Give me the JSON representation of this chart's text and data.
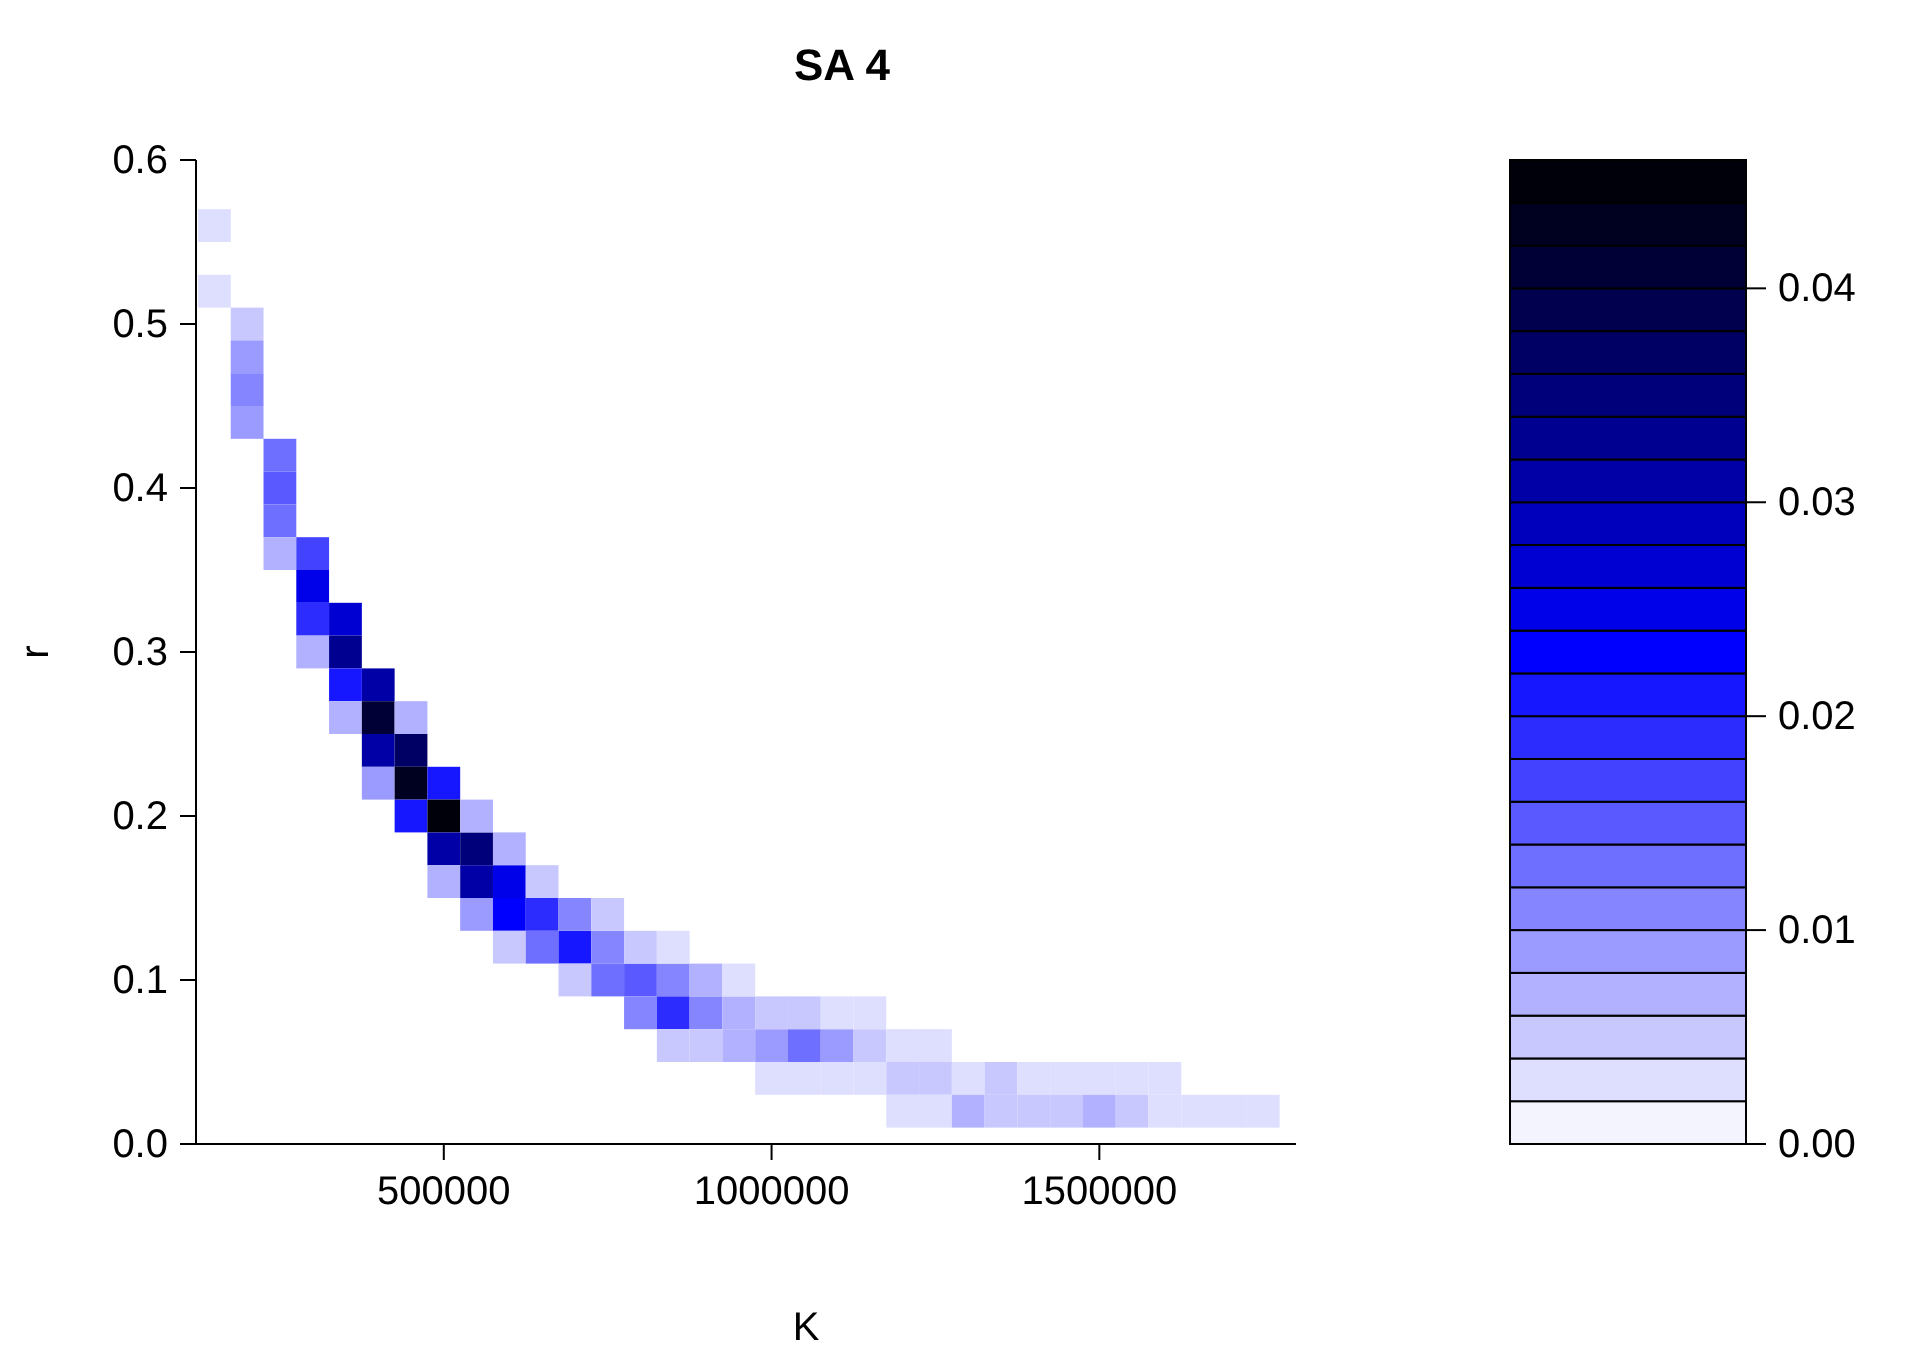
{
  "chart_data": {
    "type": "scatter",
    "title": "SA 4",
    "xlabel": "K",
    "ylabel": "r",
    "marker": "square",
    "xlim": [
      122000,
      1800000
    ],
    "xticks": [
      500000,
      1000000,
      1500000
    ],
    "ylim": [
      0,
      0.6
    ],
    "yticks": [
      {
        "value": 0,
        "label": "0.0"
      },
      0.1,
      0.2,
      0.3,
      0.4,
      0.5,
      0.6
    ],
    "clim": [
      0,
      0.046
    ],
    "cticks": [
      {
        "value": 0,
        "label": "0.00"
      },
      0.01,
      0.02,
      0.03,
      0.04
    ],
    "x": [
      150000,
      150000,
      200000,
      200000,
      200000,
      200000,
      250000,
      250000,
      250000,
      250000,
      300000,
      300000,
      300000,
      300000,
      350000,
      350000,
      350000,
      350000,
      400000,
      400000,
      400000,
      400000,
      450000,
      450000,
      450000,
      450000,
      500000,
      500000,
      500000,
      500000,
      550000,
      550000,
      550000,
      550000,
      600000,
      600000,
      600000,
      600000,
      650000,
      650000,
      650000,
      700000,
      700000,
      700000,
      750000,
      750000,
      750000,
      800000,
      800000,
      800000,
      850000,
      850000,
      850000,
      850000,
      900000,
      900000,
      900000,
      950000,
      950000,
      950000,
      1000000,
      1000000,
      1000000,
      1050000,
      1050000,
      1050000,
      1100000,
      1100000,
      1100000,
      1150000,
      1150000,
      1150000,
      1200000,
      1200000,
      1200000,
      1250000,
      1250000,
      1250000,
      1300000,
      1300000,
      1350000,
      1350000,
      1400000,
      1400000,
      1450000,
      1450000,
      1500000,
      1500000,
      1550000,
      1550000,
      1600000,
      1600000,
      1650000,
      1700000,
      1750000
    ],
    "values": [
      0.56,
      0.52,
      0.5,
      0.48,
      0.46,
      0.44,
      0.42,
      0.4,
      0.38,
      0.36,
      0.36,
      0.34,
      0.32,
      0.3,
      0.32,
      0.3,
      0.28,
      0.26,
      0.28,
      0.26,
      0.24,
      0.22,
      0.24,
      0.22,
      0.2,
      0.26,
      0.22,
      0.2,
      0.18,
      0.16,
      0.18,
      0.16,
      0.2,
      0.14,
      0.16,
      0.14,
      0.18,
      0.12,
      0.14,
      0.12,
      0.16,
      0.12,
      0.14,
      0.1,
      0.12,
      0.1,
      0.14,
      0.1,
      0.08,
      0.12,
      0.1,
      0.08,
      0.12,
      0.06,
      0.08,
      0.1,
      0.06,
      0.08,
      0.06,
      0.1,
      0.06,
      0.08,
      0.04,
      0.06,
      0.08,
      0.04,
      0.06,
      0.08,
      0.04,
      0.06,
      0.04,
      0.08,
      0.06,
      0.04,
      0.02,
      0.04,
      0.06,
      0.02,
      0.04,
      0.02,
      0.04,
      0.02,
      0.04,
      0.02,
      0.04,
      0.02,
      0.04,
      0.02,
      0.04,
      0.02,
      0.02,
      0.04,
      0.02,
      0.02,
      0.02
    ],
    "cvalues": [
      0.002,
      0.002,
      0.004,
      0.008,
      0.01,
      0.008,
      0.012,
      0.014,
      0.012,
      0.006,
      0.016,
      0.024,
      0.018,
      0.006,
      0.026,
      0.032,
      0.02,
      0.006,
      0.03,
      0.04,
      0.03,
      0.008,
      0.036,
      0.042,
      0.02,
      0.006,
      0.02,
      0.044,
      0.03,
      0.006,
      0.034,
      0.03,
      0.006,
      0.008,
      0.024,
      0.022,
      0.006,
      0.004,
      0.018,
      0.012,
      0.004,
      0.02,
      0.01,
      0.004,
      0.01,
      0.012,
      0.004,
      0.014,
      0.01,
      0.004,
      0.01,
      0.018,
      0.002,
      0.004,
      0.01,
      0.006,
      0.004,
      0.006,
      0.006,
      0.002,
      0.008,
      0.004,
      0.002,
      0.012,
      0.004,
      0.002,
      0.008,
      0.002,
      0.002,
      0.004,
      0.002,
      0.002,
      0.002,
      0.004,
      0.002,
      0.004,
      0.002,
      0.002,
      0.002,
      0.006,
      0.004,
      0.004,
      0.002,
      0.004,
      0.002,
      0.004,
      0.002,
      0.006,
      0.002,
      0.004,
      0.002,
      0.002,
      0.002,
      0.002,
      0.002
    ]
  }
}
